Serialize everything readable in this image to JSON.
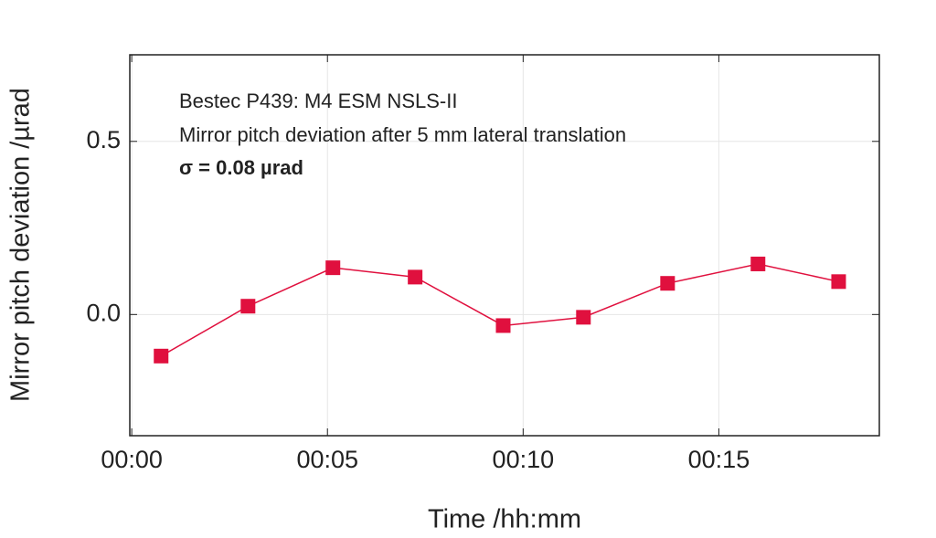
{
  "chart_data": {
    "type": "line",
    "annotations": [
      "Bestec P439: M4 ESM NSLS-II",
      "Mirror pitch deviation after 5 mm lateral translation",
      "σ = 0.08 µrad"
    ],
    "x_label": "Time /hh:mm",
    "y_label": "Mirror pitch deviation /µrad",
    "x": [
      0.75,
      2.97,
      5.14,
      7.24,
      9.49,
      11.54,
      13.69,
      16.0,
      18.06
    ],
    "values": [
      -0.12,
      0.024,
      0.135,
      0.108,
      -0.032,
      -0.008,
      0.09,
      0.146,
      0.095
    ],
    "color": "#e0103e",
    "xlim": [
      -0.05,
      19.1
    ],
    "xticks": [
      {
        "value": 0,
        "label": "00:00"
      },
      {
        "value": 5,
        "label": "00:05"
      },
      {
        "value": 10,
        "label": "00:10"
      },
      {
        "value": 15,
        "label": "00:15"
      }
    ],
    "ylim": [
      -0.35,
      0.75
    ],
    "yticks": [
      {
        "value": 0,
        "label": "0.0"
      },
      {
        "value": 0.5,
        "label": "0.5"
      }
    ],
    "grid": true
  }
}
